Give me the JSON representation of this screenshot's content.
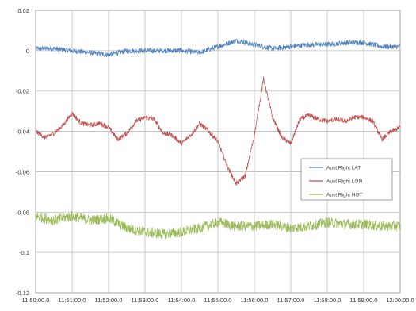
{
  "chart_data": {
    "type": "line",
    "x_categories": [
      "11:50:00.0",
      "11:51:00.0",
      "11:52:00.0",
      "11:53:00.0",
      "11:54:00.0",
      "11:55:00.0",
      "11:56:00.0",
      "11:57:00.0",
      "11:58:00.0",
      "11:59:00.0",
      "12:00:00.0"
    ],
    "y_ticks": [
      "0.02",
      "0",
      "-0.02",
      "-0.04",
      "-0.06",
      "-0.08",
      "-0.1",
      "-0.12"
    ],
    "xlim_minutes": [
      0,
      10
    ],
    "ylim": [
      -0.12,
      0.02
    ],
    "grid": true,
    "legend_position": "right, middle",
    "series": [
      {
        "name": "Aust Right LAT",
        "color": "#4f81bd",
        "x": [
          0,
          0.5,
          1,
          1.5,
          2,
          2.5,
          3,
          3.5,
          4,
          4.5,
          5,
          5.5,
          6,
          6.5,
          7,
          7.5,
          8,
          8.5,
          9,
          9.5,
          10
        ],
        "y": [
          0.001,
          0.001,
          0.0,
          -0.001,
          -0.002,
          0.0,
          0.0,
          0.0,
          0.0,
          -0.001,
          0.002,
          0.005,
          0.003,
          0.001,
          0.002,
          0.003,
          0.003,
          0.004,
          0.004,
          0.002,
          0.002
        ]
      },
      {
        "name": "Aust Right LON",
        "color": "#c0504d",
        "x": [
          0,
          0.25,
          0.5,
          0.75,
          1,
          1.25,
          1.5,
          1.75,
          2,
          2.25,
          2.5,
          2.75,
          3,
          3.25,
          3.5,
          3.75,
          4,
          4.25,
          4.5,
          4.75,
          5,
          5.25,
          5.5,
          5.75,
          6,
          6.25,
          6.5,
          6.75,
          7,
          7.25,
          7.5,
          7.75,
          8,
          8.25,
          8.5,
          8.75,
          9,
          9.25,
          9.5,
          9.75,
          10
        ],
        "y": [
          -0.04,
          -0.043,
          -0.041,
          -0.037,
          -0.031,
          -0.036,
          -0.037,
          -0.036,
          -0.038,
          -0.044,
          -0.041,
          -0.035,
          -0.033,
          -0.034,
          -0.041,
          -0.042,
          -0.046,
          -0.042,
          -0.036,
          -0.04,
          -0.045,
          -0.057,
          -0.066,
          -0.062,
          -0.042,
          -0.014,
          -0.033,
          -0.043,
          -0.046,
          -0.034,
          -0.032,
          -0.034,
          -0.035,
          -0.034,
          -0.035,
          -0.033,
          -0.033,
          -0.035,
          -0.044,
          -0.04,
          -0.038
        ]
      },
      {
        "name": "Aust Right HGT",
        "color": "#9bbb59",
        "x": [
          0,
          0.5,
          1,
          1.5,
          2,
          2.5,
          3,
          3.5,
          4,
          4.5,
          5,
          5.5,
          6,
          6.5,
          7,
          7.5,
          8,
          8.5,
          9,
          9.5,
          10
        ],
        "y": [
          -0.082,
          -0.084,
          -0.082,
          -0.084,
          -0.083,
          -0.088,
          -0.09,
          -0.091,
          -0.09,
          -0.088,
          -0.085,
          -0.087,
          -0.087,
          -0.086,
          -0.088,
          -0.087,
          -0.085,
          -0.086,
          -0.086,
          -0.087,
          -0.087
        ]
      }
    ]
  }
}
